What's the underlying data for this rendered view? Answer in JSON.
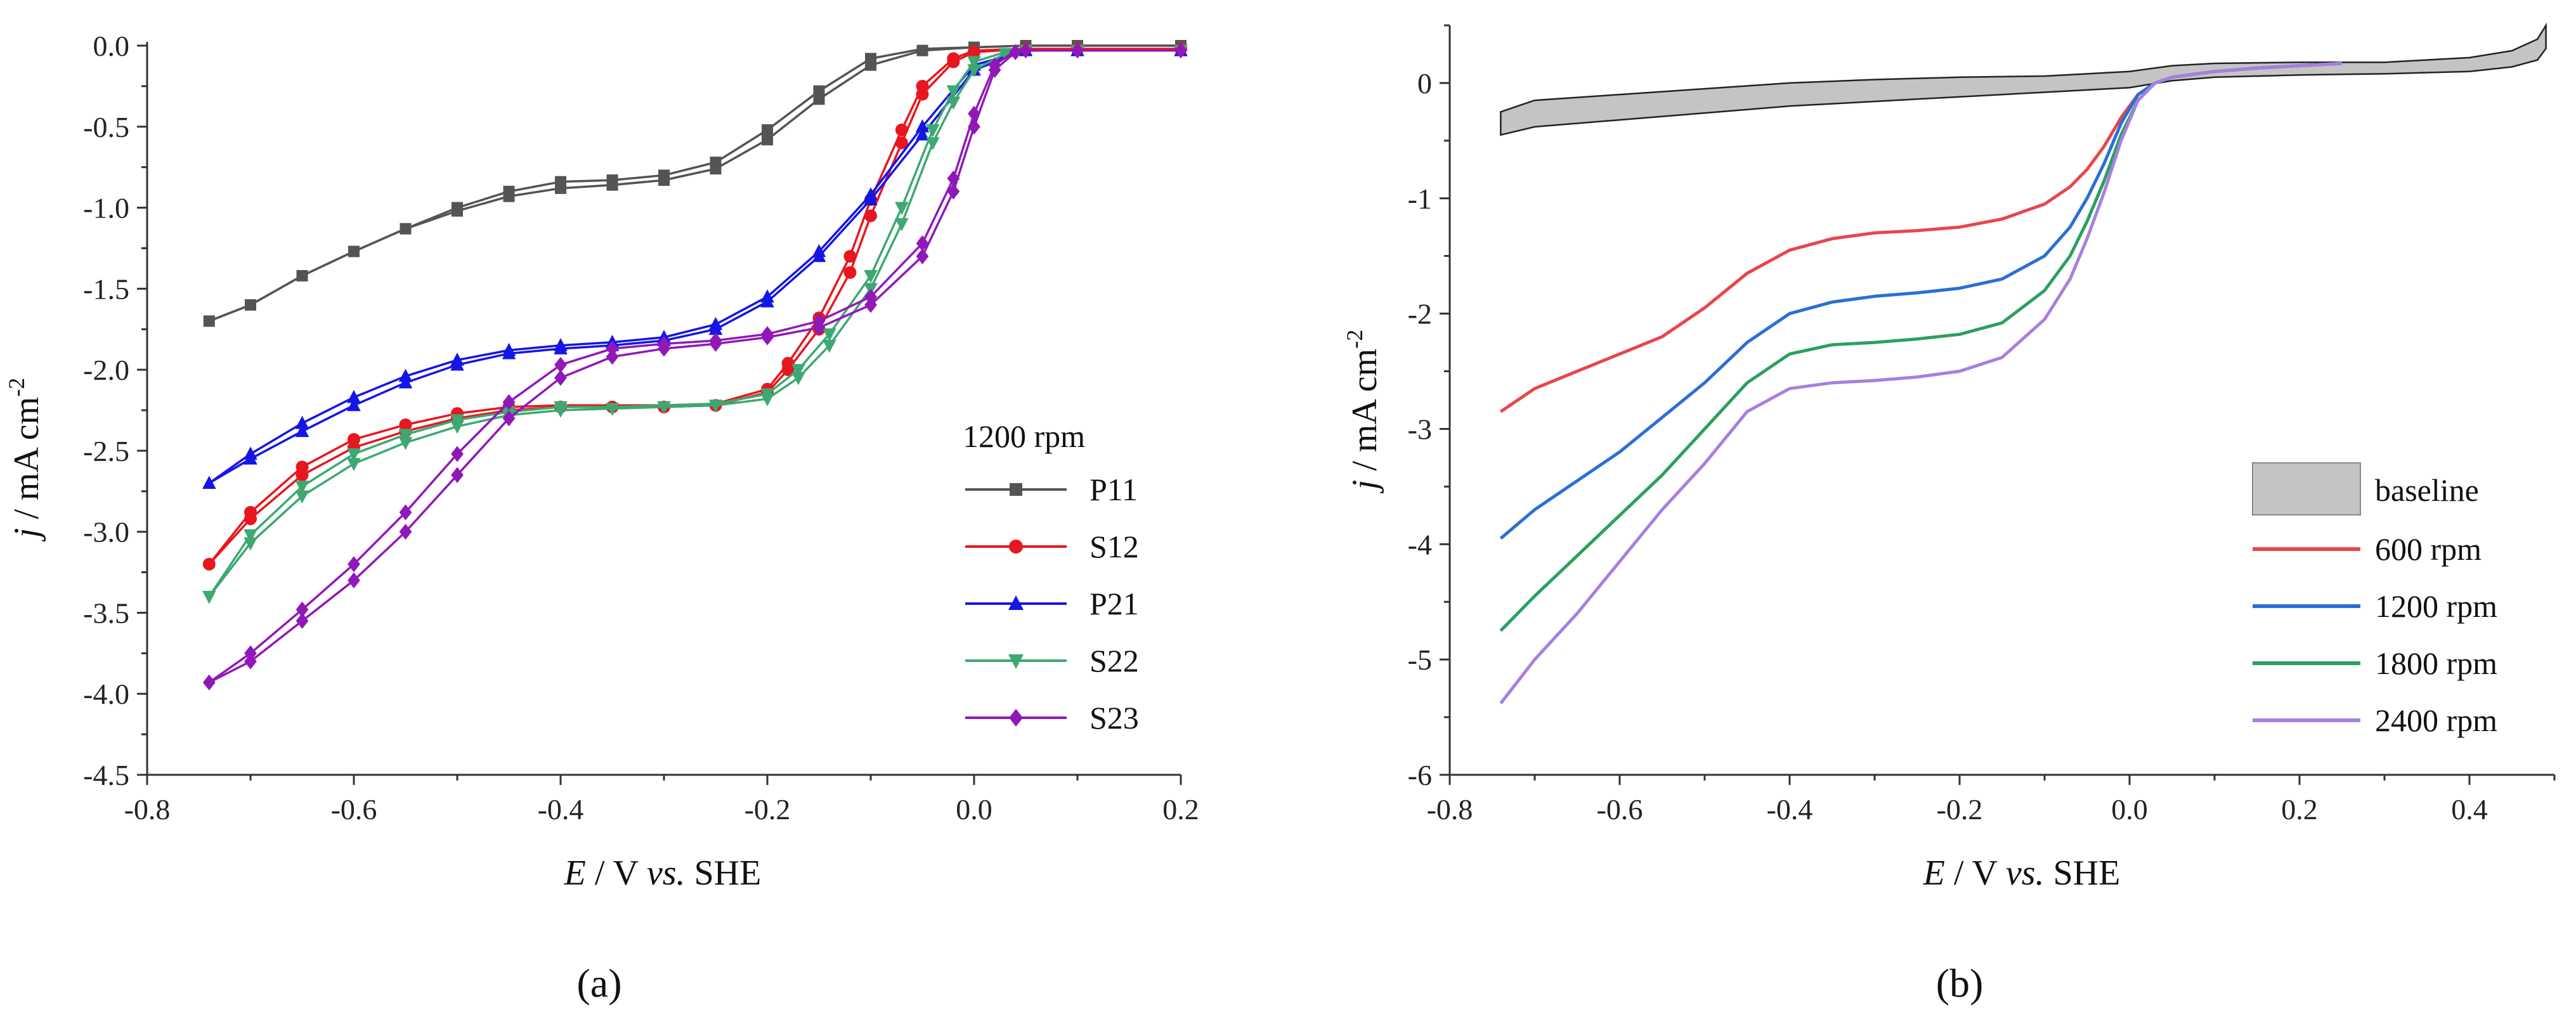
{
  "chart_data": [
    {
      "type": "line",
      "panel_label": "(a)",
      "legend_title": "1200 rpm",
      "xlabel": {
        "italic": "E",
        "rest": " / V ",
        "italic2": "vs.",
        "rest2": " SHE"
      },
      "ylabel": {
        "italic": "j",
        "rest": " / mA cm",
        "sup": "-2"
      },
      "xlim": [
        -0.8,
        0.2
      ],
      "ylim": [
        -4.5,
        0.0
      ],
      "xticks": [
        "-0.8",
        "-0.6",
        "-0.4",
        "-0.2",
        "0.0",
        "0.2"
      ],
      "yticks": [
        "0.0",
        "-0.5",
        "-1.0",
        "-1.5",
        "-2.0",
        "-2.5",
        "-3.0",
        "-3.5",
        "-4.0",
        "-4.5"
      ],
      "grid": false,
      "legend_position": "right",
      "series": [
        {
          "name": "P11",
          "color": "#545454",
          "marker": "square",
          "x": [
            -0.74,
            -0.7,
            -0.65,
            -0.6,
            -0.55,
            -0.5,
            -0.45,
            -0.4,
            -0.35,
            -0.3,
            -0.25,
            -0.2,
            -0.15,
            -0.1,
            -0.05,
            0.0,
            0.05,
            0.1,
            0.2
          ],
          "y": [
            -1.7,
            -1.6,
            -1.42,
            -1.27,
            -1.13,
            -1.02,
            -0.93,
            -0.88,
            -0.86,
            -0.83,
            -0.76,
            -0.58,
            -0.33,
            -0.12,
            -0.03,
            -0.01,
            0.0,
            0.0,
            0.0
          ],
          "y_back": [
            -1.7,
            -1.6,
            -1.42,
            -1.27,
            -1.13,
            -1.0,
            -0.9,
            -0.84,
            -0.83,
            -0.8,
            -0.72,
            -0.52,
            -0.28,
            -0.08,
            -0.02,
            -0.01,
            0.0,
            0.0,
            0.0
          ]
        },
        {
          "name": "S12",
          "color": "#e8161e",
          "marker": "circle",
          "x": [
            -0.74,
            -0.7,
            -0.65,
            -0.6,
            -0.55,
            -0.5,
            -0.45,
            -0.4,
            -0.35,
            -0.3,
            -0.25,
            -0.2,
            -0.18,
            -0.15,
            -0.12,
            -0.1,
            -0.07,
            -0.05,
            -0.02,
            0.0,
            0.05,
            0.1,
            0.2
          ],
          "y": [
            -3.2,
            -2.92,
            -2.65,
            -2.48,
            -2.38,
            -2.3,
            -2.25,
            -2.23,
            -2.23,
            -2.23,
            -2.22,
            -2.14,
            -2.0,
            -1.75,
            -1.4,
            -1.05,
            -0.6,
            -0.3,
            -0.1,
            -0.04,
            -0.02,
            -0.02,
            -0.02
          ],
          "y_back": [
            -3.2,
            -2.88,
            -2.6,
            -2.43,
            -2.34,
            -2.27,
            -2.23,
            -2.22,
            -2.22,
            -2.22,
            -2.21,
            -2.12,
            -1.96,
            -1.68,
            -1.3,
            -0.95,
            -0.52,
            -0.25,
            -0.08,
            -0.03,
            -0.02,
            -0.02,
            -0.02
          ]
        },
        {
          "name": "P21",
          "color": "#1515e6",
          "marker": "triangle-up",
          "x": [
            -0.74,
            -0.7,
            -0.65,
            -0.6,
            -0.55,
            -0.5,
            -0.45,
            -0.4,
            -0.35,
            -0.3,
            -0.25,
            -0.2,
            -0.15,
            -0.1,
            -0.05,
            0.0,
            0.05,
            0.1,
            0.2
          ],
          "y": [
            -2.7,
            -2.55,
            -2.38,
            -2.22,
            -2.08,
            -1.97,
            -1.9,
            -1.87,
            -1.85,
            -1.82,
            -1.75,
            -1.58,
            -1.3,
            -0.95,
            -0.55,
            -0.15,
            -0.03,
            -0.03,
            -0.03
          ],
          "y_back": [
            -2.7,
            -2.52,
            -2.33,
            -2.17,
            -2.04,
            -1.94,
            -1.88,
            -1.85,
            -1.83,
            -1.8,
            -1.72,
            -1.55,
            -1.27,
            -0.92,
            -0.5,
            -0.12,
            -0.03,
            -0.03,
            -0.03
          ]
        },
        {
          "name": "S22",
          "color": "#3da871",
          "marker": "triangle-down",
          "x": [
            -0.74,
            -0.7,
            -0.65,
            -0.6,
            -0.55,
            -0.5,
            -0.45,
            -0.4,
            -0.35,
            -0.3,
            -0.25,
            -0.2,
            -0.17,
            -0.14,
            -0.1,
            -0.07,
            -0.04,
            -0.02,
            0.0,
            0.03,
            0.05,
            0.1,
            0.2
          ],
          "y": [
            -3.4,
            -3.07,
            -2.78,
            -2.58,
            -2.45,
            -2.35,
            -2.28,
            -2.25,
            -2.24,
            -2.23,
            -2.22,
            -2.18,
            -2.05,
            -1.85,
            -1.5,
            -1.1,
            -0.6,
            -0.35,
            -0.15,
            -0.05,
            -0.03,
            -0.03,
            -0.03
          ],
          "y_back": [
            -3.4,
            -3.02,
            -2.72,
            -2.52,
            -2.4,
            -2.31,
            -2.26,
            -2.23,
            -2.23,
            -2.22,
            -2.21,
            -2.15,
            -2.0,
            -1.78,
            -1.42,
            -1.0,
            -0.52,
            -0.28,
            -0.1,
            -0.04,
            -0.03,
            -0.03,
            -0.03
          ]
        },
        {
          "name": "S23",
          "color": "#9018b8",
          "marker": "diamond",
          "x": [
            -0.74,
            -0.7,
            -0.65,
            -0.6,
            -0.55,
            -0.5,
            -0.45,
            -0.4,
            -0.35,
            -0.3,
            -0.25,
            -0.2,
            -0.15,
            -0.1,
            -0.05,
            -0.02,
            0.0,
            0.02,
            0.04,
            0.05,
            0.1,
            0.2
          ],
          "y": [
            -3.93,
            -3.8,
            -3.55,
            -3.3,
            -3.0,
            -2.65,
            -2.3,
            -2.05,
            -1.92,
            -1.87,
            -1.84,
            -1.8,
            -1.74,
            -1.6,
            -1.3,
            -0.9,
            -0.5,
            -0.15,
            -0.04,
            -0.03,
            -0.03,
            -0.03
          ],
          "y_back": [
            -3.93,
            -3.75,
            -3.48,
            -3.2,
            -2.88,
            -2.52,
            -2.2,
            -1.97,
            -1.87,
            -1.84,
            -1.82,
            -1.78,
            -1.7,
            -1.55,
            -1.22,
            -0.82,
            -0.42,
            -0.12,
            -0.03,
            -0.03,
            -0.03,
            -0.03
          ]
        }
      ]
    },
    {
      "type": "line",
      "panel_label": "(b)",
      "xlabel": {
        "italic": "E",
        "rest": " / V ",
        "italic2": "vs.",
        "rest2": " SHE"
      },
      "ylabel": {
        "italic": "j",
        "rest": " / mA cm",
        "sup": "-2"
      },
      "xlim": [
        -0.8,
        0.5
      ],
      "ylim": [
        -6.0,
        0.5
      ],
      "xticks": [
        "-0.8",
        "-0.6",
        "-0.4",
        "-0.2",
        "0.0",
        "0.2",
        "0.4"
      ],
      "xtick_values": [
        -0.8,
        -0.6,
        -0.4,
        -0.2,
        0.0,
        0.2,
        0.4
      ],
      "yticks": [
        "0",
        "-1",
        "-2",
        "-3",
        "-4",
        "-5",
        "-6"
      ],
      "ytick_values": [
        0,
        -1,
        -2,
        -3,
        -4,
        -5,
        -6
      ],
      "grid": false,
      "legend_position": "bottom-right",
      "baseline": {
        "name": "baseline",
        "color": "#c4c4c4",
        "x": [
          -0.74,
          -0.7,
          -0.6,
          -0.5,
          -0.4,
          -0.3,
          -0.2,
          -0.1,
          0.0,
          0.05,
          0.1,
          0.2,
          0.3,
          0.4,
          0.45,
          0.48,
          0.49
        ],
        "upper": [
          -0.25,
          -0.15,
          -0.1,
          -0.05,
          0.0,
          0.03,
          0.05,
          0.06,
          0.1,
          0.15,
          0.17,
          0.18,
          0.18,
          0.22,
          0.28,
          0.38,
          0.5
        ],
        "lower": [
          -0.45,
          -0.38,
          -0.32,
          -0.26,
          -0.2,
          -0.16,
          -0.12,
          -0.08,
          -0.04,
          0.02,
          0.05,
          0.07,
          0.08,
          0.1,
          0.14,
          0.2,
          0.3
        ]
      },
      "series": [
        {
          "name": "600 rpm",
          "color": "#e8464c",
          "x": [
            -0.74,
            -0.7,
            -0.65,
            -0.6,
            -0.55,
            -0.5,
            -0.45,
            -0.4,
            -0.35,
            -0.3,
            -0.25,
            -0.2,
            -0.15,
            -0.1,
            -0.07,
            -0.05,
            -0.03,
            -0.01,
            0.01,
            0.03,
            0.05,
            0.1,
            0.15,
            0.2,
            0.25
          ],
          "y": [
            -2.85,
            -2.65,
            -2.5,
            -2.35,
            -2.2,
            -1.95,
            -1.65,
            -1.45,
            -1.35,
            -1.3,
            -1.28,
            -1.25,
            -1.18,
            -1.05,
            -0.9,
            -0.75,
            -0.55,
            -0.3,
            -0.1,
            0.0,
            0.05,
            0.1,
            0.13,
            0.15,
            0.17
          ]
        },
        {
          "name": "1200 rpm",
          "color": "#2a6fd6",
          "x": [
            -0.74,
            -0.7,
            -0.65,
            -0.6,
            -0.55,
            -0.5,
            -0.45,
            -0.4,
            -0.35,
            -0.3,
            -0.25,
            -0.2,
            -0.15,
            -0.1,
            -0.07,
            -0.05,
            -0.03,
            -0.01,
            0.01,
            0.03,
            0.05,
            0.1,
            0.15,
            0.2,
            0.25
          ],
          "y": [
            -3.95,
            -3.7,
            -3.45,
            -3.2,
            -2.9,
            -2.6,
            -2.25,
            -2.0,
            -1.9,
            -1.85,
            -1.82,
            -1.78,
            -1.7,
            -1.5,
            -1.25,
            -1.0,
            -0.7,
            -0.35,
            -0.1,
            0.0,
            0.05,
            0.1,
            0.13,
            0.15,
            0.17
          ]
        },
        {
          "name": "1800 rpm",
          "color": "#2aa05e",
          "x": [
            -0.74,
            -0.7,
            -0.65,
            -0.6,
            -0.55,
            -0.5,
            -0.45,
            -0.4,
            -0.35,
            -0.3,
            -0.25,
            -0.2,
            -0.15,
            -0.1,
            -0.07,
            -0.05,
            -0.03,
            -0.01,
            0.01,
            0.03,
            0.05,
            0.1,
            0.15,
            0.2,
            0.25
          ],
          "y": [
            -4.75,
            -4.45,
            -4.1,
            -3.75,
            -3.4,
            -3.0,
            -2.6,
            -2.35,
            -2.27,
            -2.25,
            -2.22,
            -2.18,
            -2.08,
            -1.8,
            -1.5,
            -1.2,
            -0.85,
            -0.45,
            -0.15,
            0.0,
            0.05,
            0.1,
            0.13,
            0.15,
            0.17
          ]
        },
        {
          "name": "2400 rpm",
          "color": "#a77fe0",
          "x": [
            -0.74,
            -0.7,
            -0.65,
            -0.6,
            -0.55,
            -0.5,
            -0.45,
            -0.4,
            -0.35,
            -0.3,
            -0.25,
            -0.2,
            -0.15,
            -0.1,
            -0.07,
            -0.05,
            -0.03,
            -0.01,
            0.01,
            0.03,
            0.05,
            0.1,
            0.15,
            0.2,
            0.25
          ],
          "y": [
            -5.38,
            -5.0,
            -4.6,
            -4.15,
            -3.7,
            -3.3,
            -2.85,
            -2.65,
            -2.6,
            -2.58,
            -2.55,
            -2.5,
            -2.38,
            -2.05,
            -1.7,
            -1.35,
            -0.95,
            -0.5,
            -0.15,
            0.0,
            0.05,
            0.1,
            0.13,
            0.15,
            0.17
          ]
        }
      ]
    }
  ]
}
